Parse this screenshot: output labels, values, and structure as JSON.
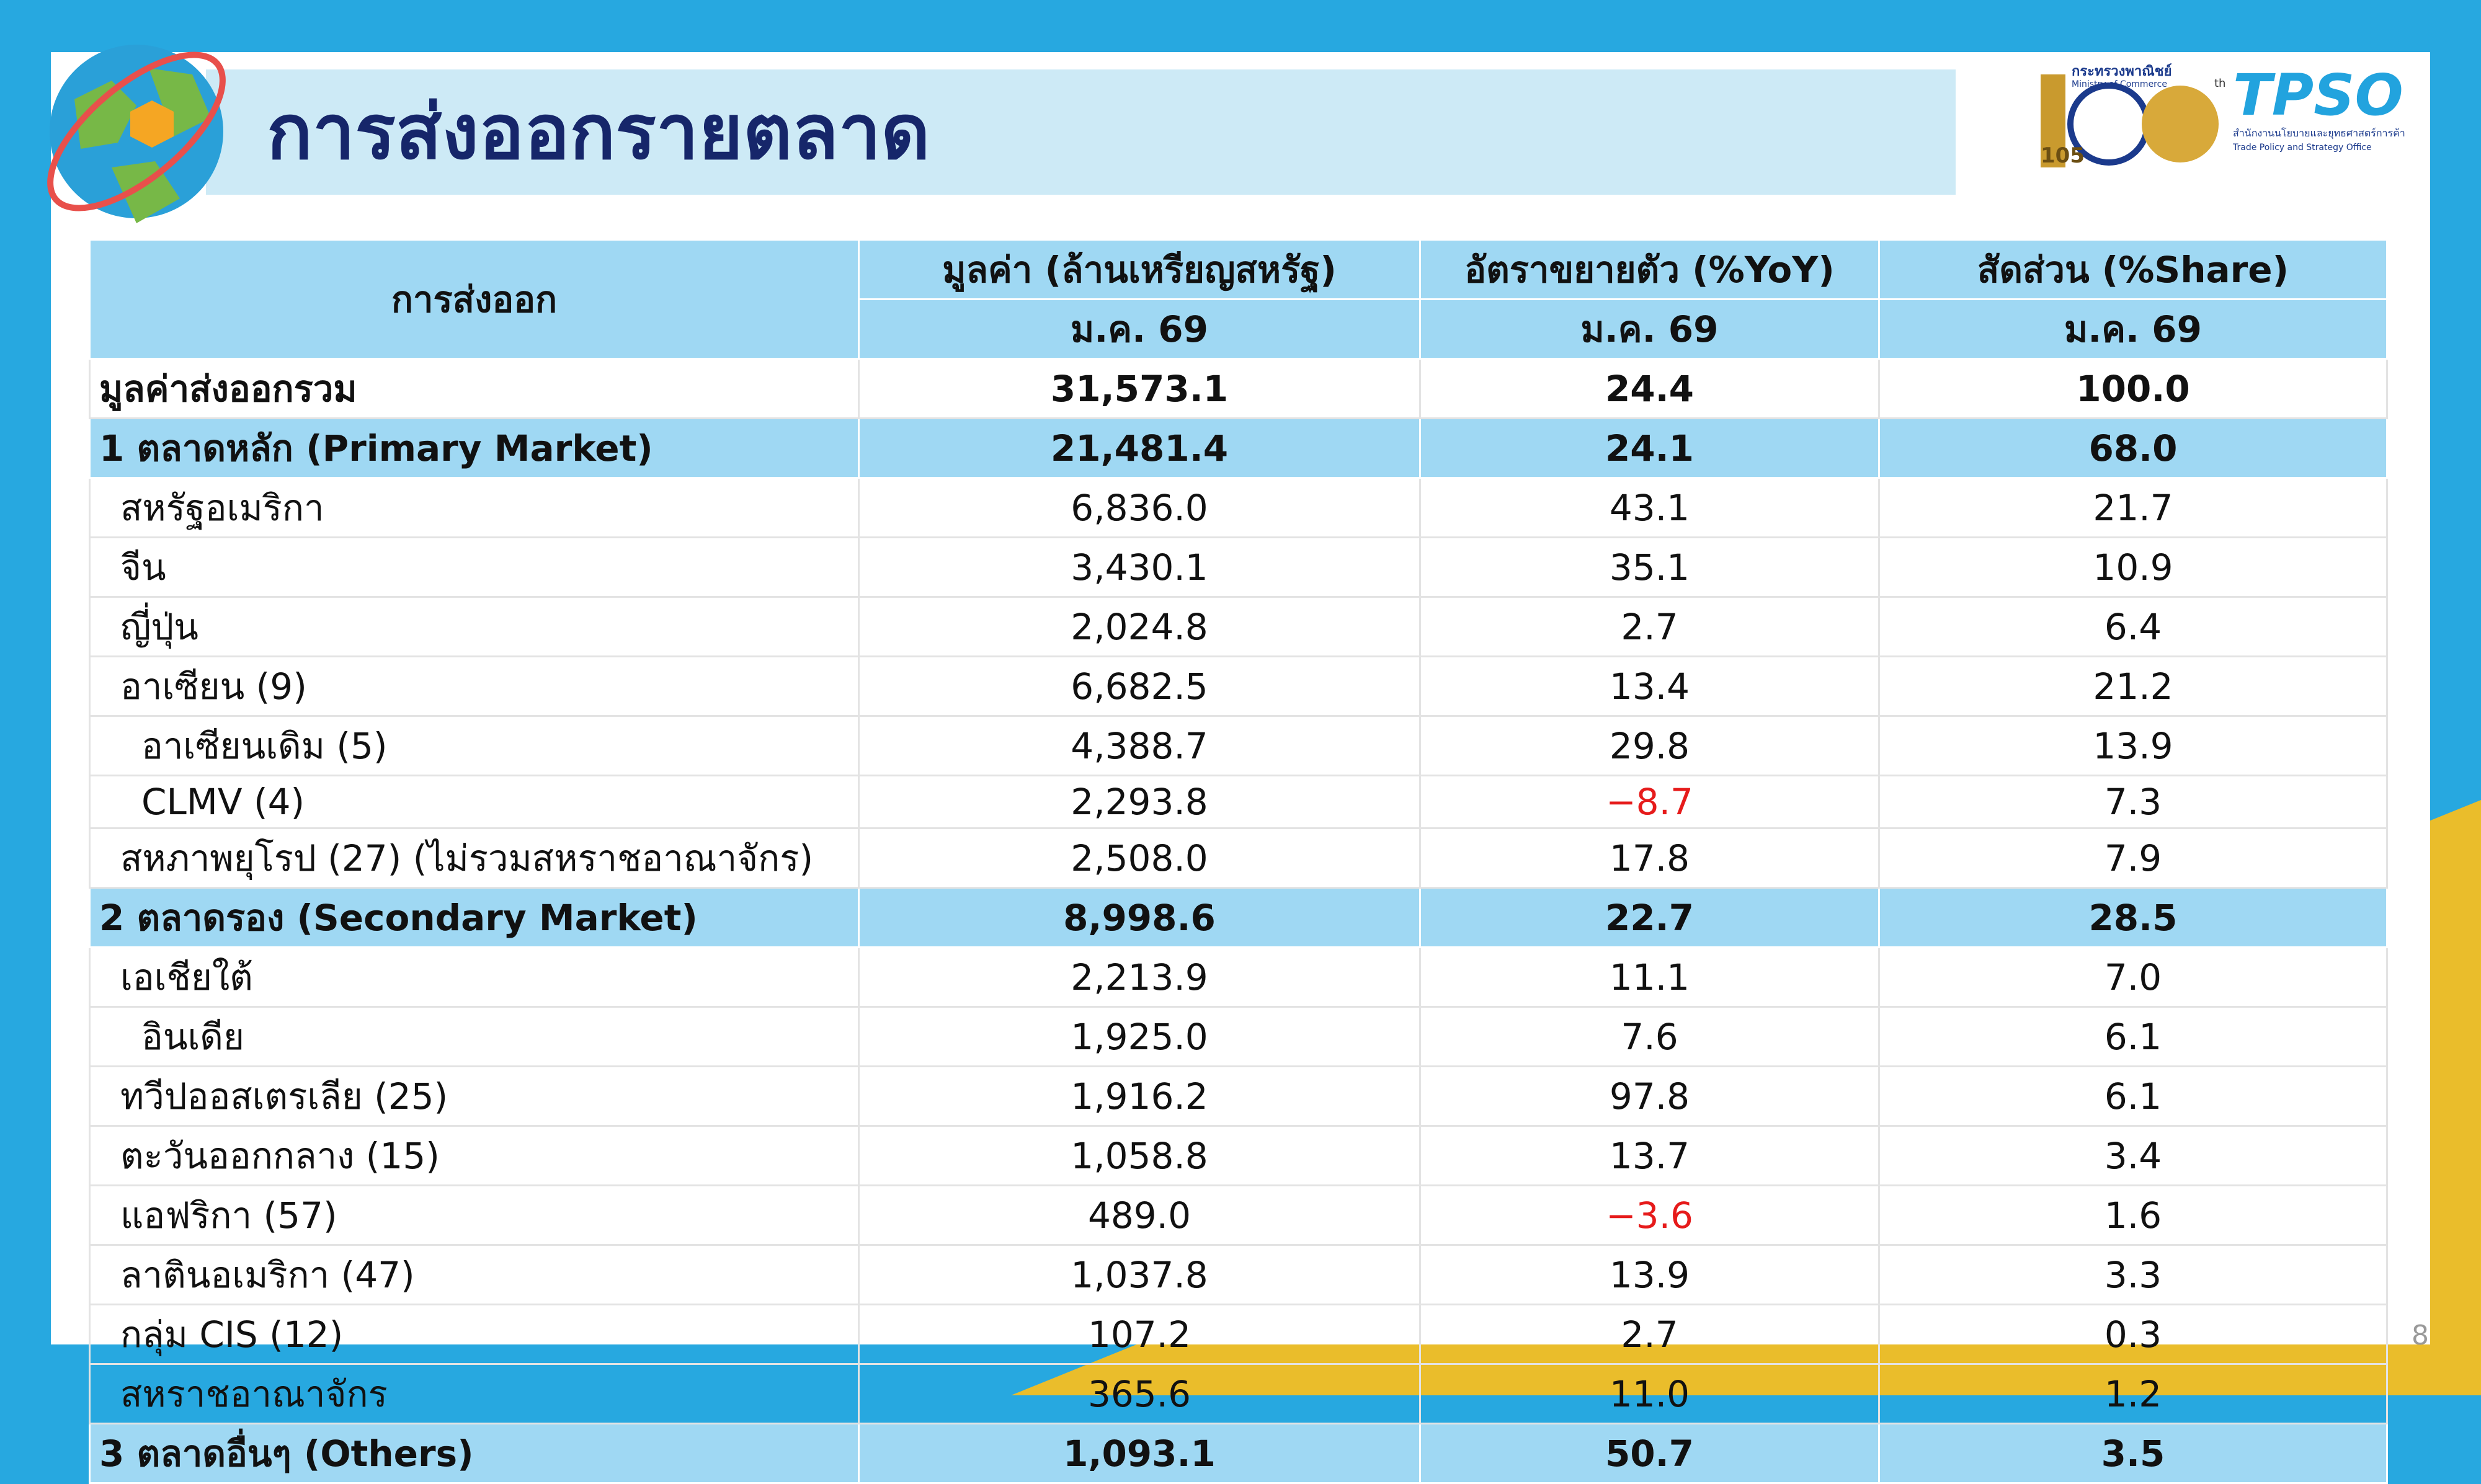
{
  "header": {
    "title": "การส่งออกรายตลาด"
  },
  "logos": {
    "ministry_th": "กระทรวงพาณิชย์",
    "ministry_en": "Ministry of Commerce",
    "anniversary": "105",
    "anniversary_suffix": "th",
    "tpso": "TPSO",
    "tpso_th": "สำนักงานนโยบายและยุทธศาสตร์การค้า",
    "tpso_en": "Trade Policy and Strategy Office"
  },
  "table": {
    "header": {
      "col0": "การส่งออก",
      "col1": "มูลค่า (ล้านเหรียญสหรัฐ)",
      "col2": "อัตราขยายตัว (%YoY)",
      "col3": "สัดส่วน (%Share)",
      "period": [
        "ม.ค. 69",
        "ม.ค. 69",
        "ม.ค. 69"
      ]
    },
    "rows": [
      [
        "มูลค่าส่งออกรวม",
        "31,573.1",
        "24.4",
        "100.0"
      ],
      [
        "1 ตลาดหลัก (Primary Market)",
        "21,481.4",
        "24.1",
        "68.0"
      ],
      [
        "สหรัฐอเมริกา",
        "6,836.0",
        "43.1",
        "21.7"
      ],
      [
        "จีน",
        "3,430.1",
        "35.1",
        "10.9"
      ],
      [
        "ญี่ปุ่น",
        "2,024.8",
        "2.7",
        "6.4"
      ],
      [
        "อาเซียน (9)",
        "6,682.5",
        "13.4",
        "21.2"
      ],
      [
        "อาเซียนเดิม (5)",
        "4,388.7",
        "29.8",
        "13.9"
      ],
      [
        "CLMV (4)",
        "2,293.8",
        "−8.7",
        "7.3"
      ],
      [
        "สหภาพยุโรป (27) (ไม่รวมสหราชอาณาจักร)",
        "2,508.0",
        "17.8",
        "7.9"
      ],
      [
        "2 ตลาดรอง (Secondary Market)",
        "8,998.6",
        "22.7",
        "28.5"
      ],
      [
        "เอเชียใต้",
        "2,213.9",
        "11.1",
        "7.0"
      ],
      [
        "อินเดีย",
        "1,925.0",
        "7.6",
        "6.1"
      ],
      [
        "ทวีปออสเตรเลีย (25)",
        "1,916.2",
        "97.8",
        "6.1"
      ],
      [
        "ตะวันออกกลาง (15)",
        "1,058.8",
        "13.7",
        "3.4"
      ],
      [
        "แอฟริกา (57)",
        "489.0",
        "−3.6",
        "1.6"
      ],
      [
        "ลาตินอเมริกา (47)",
        "1,037.8",
        "13.9",
        "3.3"
      ],
      [
        "กลุ่ม CIS (12)",
        "107.2",
        "2.7",
        "0.3"
      ],
      [
        "สหราชอาณาจักร",
        "365.6",
        "11.0",
        "1.2"
      ],
      [
        "3 ตลาดอื่นๆ (Others)",
        "1,093.1",
        "50.7",
        "3.5"
      ]
    ]
  },
  "page_number": "8"
}
